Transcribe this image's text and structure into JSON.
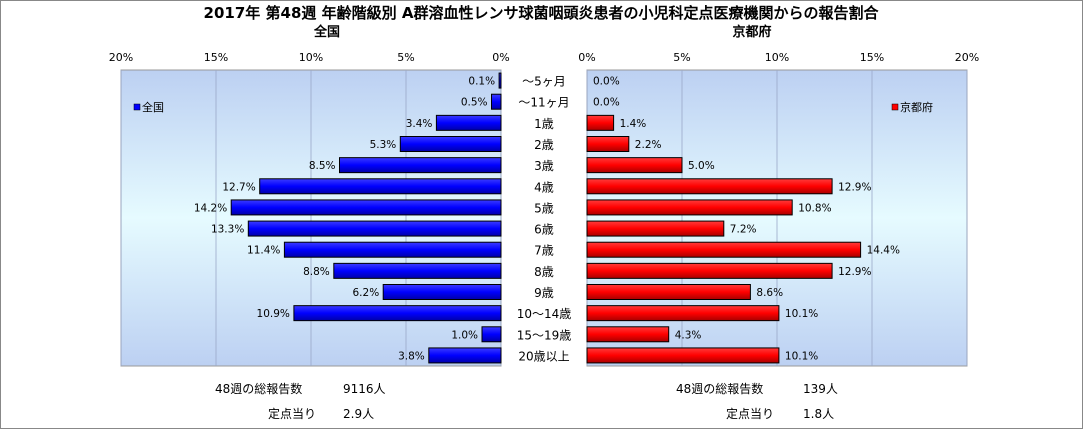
{
  "chart_data": {
    "type": "bar",
    "orientation": "horizontal",
    "title": "2017年 第48週 年齢階級別 A群溶血性レンサ球菌咽頭炎患者の小児科定点医療機関からの報告割合",
    "categories": [
      "～5ヶ月",
      "～11ヶ月",
      "1歳",
      "2歳",
      "3歳",
      "4歳",
      "5歳",
      "6歳",
      "7歳",
      "8歳",
      "9歳",
      "10～14歳",
      "15～19歳",
      "20歳以上"
    ],
    "xlim": [
      0,
      20
    ],
    "x_ticks": [
      "20%",
      "15%",
      "10%",
      "5%",
      "0%"
    ],
    "grid": true,
    "series": [
      {
        "name": "全国",
        "panel_title": "全国",
        "color": "#0000ff",
        "legend_position": "top-left",
        "values": [
          0.1,
          0.5,
          3.4,
          5.3,
          8.5,
          12.7,
          14.2,
          13.3,
          11.4,
          8.8,
          6.2,
          10.9,
          1.0,
          3.8
        ],
        "value_labels": [
          "0.1%",
          "0.5%",
          "3.4%",
          "5.3%",
          "8.5%",
          "12.7%",
          "14.2%",
          "13.3%",
          "11.4%",
          "8.8%",
          "6.2%",
          "10.9%",
          "1.0%",
          "3.8%"
        ]
      },
      {
        "name": "京都府",
        "panel_title": "京都府",
        "color": "#ff0000",
        "legend_position": "top-right",
        "values": [
          0.0,
          0.0,
          1.4,
          2.2,
          5.0,
          12.9,
          10.8,
          7.2,
          14.4,
          12.9,
          8.6,
          10.1,
          4.3,
          10.1
        ],
        "value_labels": [
          "0.0%",
          "0.0%",
          "1.4%",
          "2.2%",
          "5.0%",
          "12.9%",
          "10.8%",
          "7.2%",
          "14.4%",
          "12.9%",
          "8.6%",
          "10.1%",
          "4.3%",
          "10.1%"
        ]
      }
    ]
  },
  "footer": {
    "left": {
      "total_label": "48週の総報告数",
      "total_value": "9116人",
      "per_label": "定点当り",
      "per_value": "2.9人"
    },
    "right": {
      "total_label": "48週の総報告数",
      "total_value": "139人",
      "per_label": "定点当り",
      "per_value": "1.8人"
    }
  },
  "right_ticks": [
    "0%",
    "5%",
    "10%",
    "15%",
    "20%"
  ]
}
